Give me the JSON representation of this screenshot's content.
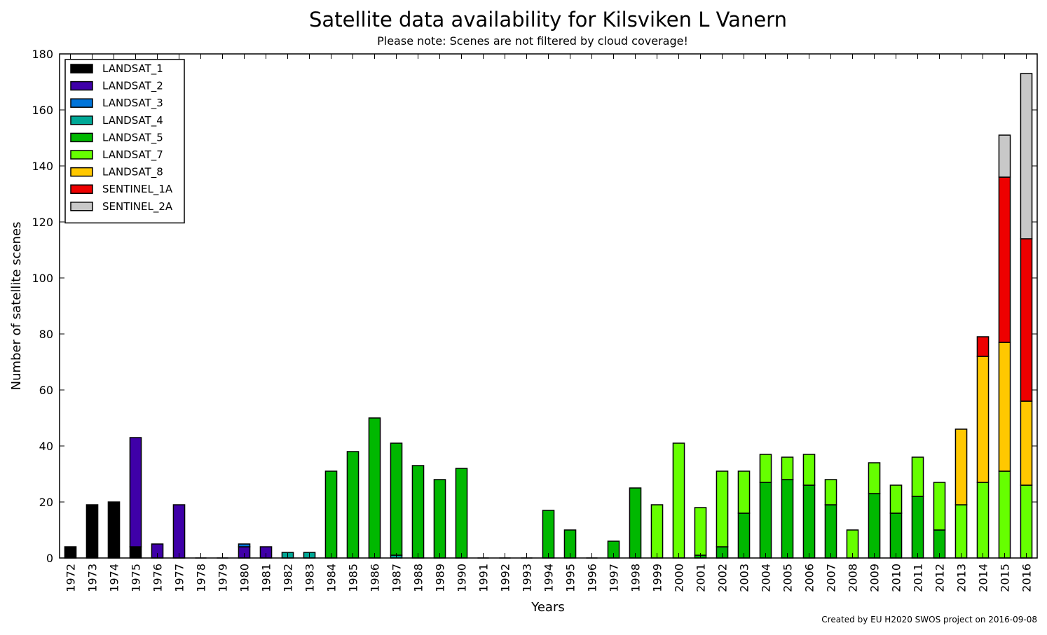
{
  "chart_data": {
    "type": "bar",
    "stacked": true,
    "title": "Satellite data availability for Kilsviken L Vanern",
    "subtitle": "Please note: Scenes are not filtered by cloud coverage!",
    "xlabel": "Years",
    "ylabel": "Number of satellite scenes",
    "ylim": [
      0,
      180
    ],
    "yticks": [
      0,
      20,
      40,
      60,
      80,
      100,
      120,
      140,
      160,
      180
    ],
    "legend_position": "top-left",
    "grid": false,
    "footer": "Created by EU H2020 SWOS project on 2016-09-08",
    "categories": [
      "1972",
      "1973",
      "1974",
      "1975",
      "1976",
      "1977",
      "1978",
      "1979",
      "1980",
      "1981",
      "1982",
      "1983",
      "1984",
      "1985",
      "1986",
      "1987",
      "1988",
      "1989",
      "1990",
      "1991",
      "1992",
      "1993",
      "1994",
      "1995",
      "1996",
      "1997",
      "1998",
      "1999",
      "2000",
      "2001",
      "2002",
      "2003",
      "2004",
      "2005",
      "2006",
      "2007",
      "2008",
      "2009",
      "2010",
      "2011",
      "2012",
      "2013",
      "2014",
      "2015",
      "2016"
    ],
    "series": [
      {
        "name": "LANDSAT_1",
        "color": "#000000",
        "values": [
          4,
          19,
          20,
          4,
          0,
          0,
          0,
          0,
          0,
          0,
          0,
          0,
          0,
          0,
          0,
          0,
          0,
          0,
          0,
          0,
          0,
          0,
          0,
          0,
          0,
          0,
          0,
          0,
          0,
          0,
          0,
          0,
          0,
          0,
          0,
          0,
          0,
          0,
          0,
          0,
          0,
          0,
          0,
          0,
          0
        ]
      },
      {
        "name": "LANDSAT_2",
        "color": "#3f00a8",
        "values": [
          0,
          0,
          0,
          39,
          5,
          19,
          0,
          0,
          4,
          4,
          0,
          0,
          0,
          0,
          0,
          0,
          0,
          0,
          0,
          0,
          0,
          0,
          0,
          0,
          0,
          0,
          0,
          0,
          0,
          0,
          0,
          0,
          0,
          0,
          0,
          0,
          0,
          0,
          0,
          0,
          0,
          0,
          0,
          0,
          0
        ]
      },
      {
        "name": "LANDSAT_3",
        "color": "#0074d9",
        "values": [
          0,
          0,
          0,
          0,
          0,
          0,
          0,
          0,
          1,
          0,
          0,
          0,
          0,
          0,
          0,
          0,
          0,
          0,
          0,
          0,
          0,
          0,
          0,
          0,
          0,
          0,
          0,
          0,
          0,
          0,
          0,
          0,
          0,
          0,
          0,
          0,
          0,
          0,
          0,
          0,
          0,
          0,
          0,
          0,
          0
        ]
      },
      {
        "name": "LANDSAT_4",
        "color": "#00a896",
        "values": [
          0,
          0,
          0,
          0,
          0,
          0,
          0,
          0,
          0,
          0,
          2,
          2,
          0,
          0,
          0,
          1,
          0,
          0,
          0,
          0,
          0,
          0,
          0,
          0,
          0,
          0,
          0,
          0,
          0,
          0,
          0,
          0,
          0,
          0,
          0,
          0,
          0,
          0,
          0,
          0,
          0,
          0,
          0,
          0,
          0
        ]
      },
      {
        "name": "LANDSAT_5",
        "color": "#00b800",
        "values": [
          0,
          0,
          0,
          0,
          0,
          0,
          0,
          0,
          0,
          0,
          0,
          0,
          31,
          38,
          50,
          40,
          33,
          28,
          32,
          0,
          0,
          0,
          17,
          10,
          0,
          6,
          25,
          0,
          0,
          1,
          4,
          16,
          27,
          28,
          26,
          19,
          0,
          23,
          16,
          22,
          10,
          0,
          0,
          0,
          0
        ]
      },
      {
        "name": "LANDSAT_7",
        "color": "#66ff00",
        "values": [
          0,
          0,
          0,
          0,
          0,
          0,
          0,
          0,
          0,
          0,
          0,
          0,
          0,
          0,
          0,
          0,
          0,
          0,
          0,
          0,
          0,
          0,
          0,
          0,
          0,
          0,
          0,
          19,
          41,
          17,
          27,
          15,
          10,
          8,
          11,
          9,
          10,
          11,
          10,
          14,
          17,
          19,
          27,
          31,
          26
        ]
      },
      {
        "name": "LANDSAT_8",
        "color": "#ffc800",
        "values": [
          0,
          0,
          0,
          0,
          0,
          0,
          0,
          0,
          0,
          0,
          0,
          0,
          0,
          0,
          0,
          0,
          0,
          0,
          0,
          0,
          0,
          0,
          0,
          0,
          0,
          0,
          0,
          0,
          0,
          0,
          0,
          0,
          0,
          0,
          0,
          0,
          0,
          0,
          0,
          0,
          0,
          27,
          45,
          46,
          30
        ]
      },
      {
        "name": "SENTINEL_1A",
        "color": "#ee0000",
        "values": [
          0,
          0,
          0,
          0,
          0,
          0,
          0,
          0,
          0,
          0,
          0,
          0,
          0,
          0,
          0,
          0,
          0,
          0,
          0,
          0,
          0,
          0,
          0,
          0,
          0,
          0,
          0,
          0,
          0,
          0,
          0,
          0,
          0,
          0,
          0,
          0,
          0,
          0,
          0,
          0,
          0,
          0,
          7,
          59,
          58
        ]
      },
      {
        "name": "SENTINEL_2A",
        "color": "#c8c8c8",
        "values": [
          0,
          0,
          0,
          0,
          0,
          0,
          0,
          0,
          0,
          0,
          0,
          0,
          0,
          0,
          0,
          0,
          0,
          0,
          0,
          0,
          0,
          0,
          0,
          0,
          0,
          0,
          0,
          0,
          0,
          0,
          0,
          0,
          0,
          0,
          0,
          0,
          0,
          0,
          0,
          0,
          0,
          0,
          0,
          15,
          59
        ]
      }
    ]
  }
}
